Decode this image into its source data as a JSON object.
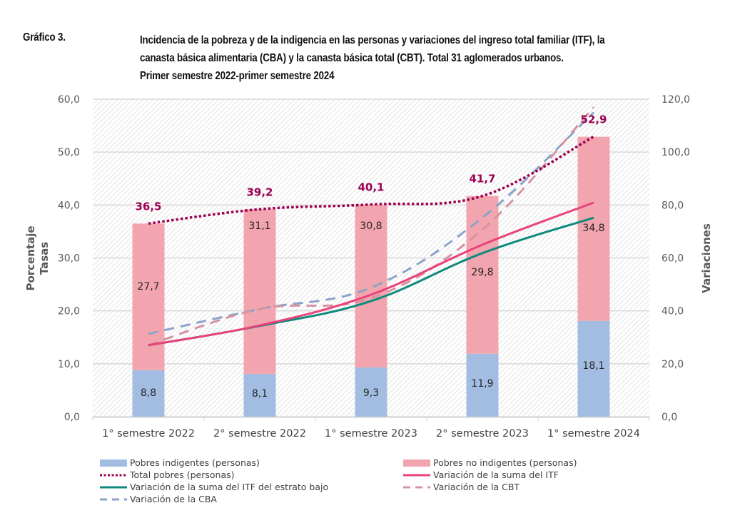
{
  "header": {
    "label": "Gráfico 3.",
    "title_lines": [
      "Incidencia de la pobreza y de la indigencia en las personas y variaciones del ingreso total familiar (ITF), la",
      "canasta básica alimentaria (CBA) y la canasta básica total (CBT). Total 31 aglomerados urbanos.",
      "Primer semestre 2022-primer semestre 2024"
    ]
  },
  "chart_data": {
    "type": "bar",
    "subtype": "stacked bar + line combo (dual axis)",
    "title": "Incidencia de la pobreza y de la indigencia en las personas y variaciones del ingreso total familiar (ITF), la canasta básica alimentaria (CBA) y la canasta básica total (CBT). Total 31 aglomerados urbanos. Primer semestre 2022-primer semestre 2024",
    "categories": [
      "1° semestre 2022",
      "2° semestre 2022",
      "1° semestre 2023",
      "2° semestre 2023",
      "1° semestre 2024"
    ],
    "left_axis": {
      "title_lines": [
        "Porcentaje",
        "Tasas"
      ],
      "ylim": [
        0,
        60
      ],
      "ticks": [
        "0,0",
        "10,0",
        "20,0",
        "30,0",
        "40,0",
        "50,0",
        "60,0"
      ],
      "tick_values": [
        0,
        10,
        20,
        30,
        40,
        50,
        60
      ]
    },
    "right_axis": {
      "title": "Variaciones",
      "ylim": [
        0,
        120
      ],
      "ticks": [
        "0,0",
        "20,0",
        "40,0",
        "60,0",
        "80,0",
        "100,0",
        "120,0"
      ],
      "tick_values": [
        0,
        20,
        40,
        60,
        80,
        100,
        120
      ]
    },
    "grid": true,
    "background": "diagonal-hatch",
    "legend_position": "bottom",
    "bar_series": [
      {
        "name": "Pobres indigentes (personas)",
        "axis": "left",
        "color": "#a3bde2",
        "values": [
          8.8,
          8.1,
          9.3,
          11.9,
          18.1
        ],
        "labels": [
          "8,8",
          "8,1",
          "9,3",
          "11,9",
          "18,1"
        ]
      },
      {
        "name": "Pobres no indigentes (personas)",
        "axis": "left",
        "color": "#f2a5ae",
        "values": [
          27.7,
          31.1,
          30.8,
          29.8,
          34.8
        ],
        "labels": [
          "27,7",
          "31,1",
          "30,8",
          "29,8",
          "34,8"
        ]
      }
    ],
    "line_series": [
      {
        "name": "Total pobres (personas)",
        "axis": "left",
        "color": "#9c0052",
        "style": "dotted",
        "values": [
          36.5,
          39.2,
          40.1,
          41.7,
          52.9
        ],
        "labels": [
          "36,5",
          "39,2",
          "40,1",
          "41,7",
          "52,9"
        ]
      },
      {
        "name": "Variación de la suma del ITF",
        "axis": "right",
        "color": "#e8437a",
        "style": "solid",
        "values": [
          27.0,
          34.5,
          46.1,
          65.0,
          80.9
        ]
      },
      {
        "name": "Variación de la suma del ITF del estrato bajo",
        "axis": "right",
        "color": "#0f8a7e",
        "style": "solid",
        "values": [
          27.0,
          34.3,
          43.7,
          61.8,
          75.2
        ]
      },
      {
        "name": "Variación de la CBT",
        "axis": "right",
        "color": "#d494a0",
        "style": "dashed",
        "values": [
          27.0,
          40.7,
          44.8,
          70.7,
          117.0
        ]
      },
      {
        "name": "Variación de la CBA",
        "axis": "right",
        "color": "#8aa4c8",
        "style": "dashed",
        "values": [
          31.3,
          40.7,
          48.8,
          75.2,
          115.0
        ]
      }
    ]
  },
  "legend": {
    "items": [
      {
        "label": "Pobres indigentes (personas)",
        "kind": "bar",
        "color": "#a3bde2"
      },
      {
        "label": "Pobres no indigentes (personas)",
        "kind": "bar",
        "color": "#f2a5ae"
      },
      {
        "label": "Total pobres (personas)",
        "kind": "dotted",
        "color": "#9c0052"
      },
      {
        "label": "Variación de la suma del ITF",
        "kind": "solid",
        "color": "#e8437a"
      },
      {
        "label": "Variación de la suma del ITF del estrato bajo",
        "kind": "solid",
        "color": "#0f8a7e"
      },
      {
        "label": "Variación de la CBT",
        "kind": "dashed",
        "color": "#d494a0"
      },
      {
        "label": "Variación de la CBA",
        "kind": "dashed",
        "color": "#8aa4c8"
      }
    ]
  }
}
